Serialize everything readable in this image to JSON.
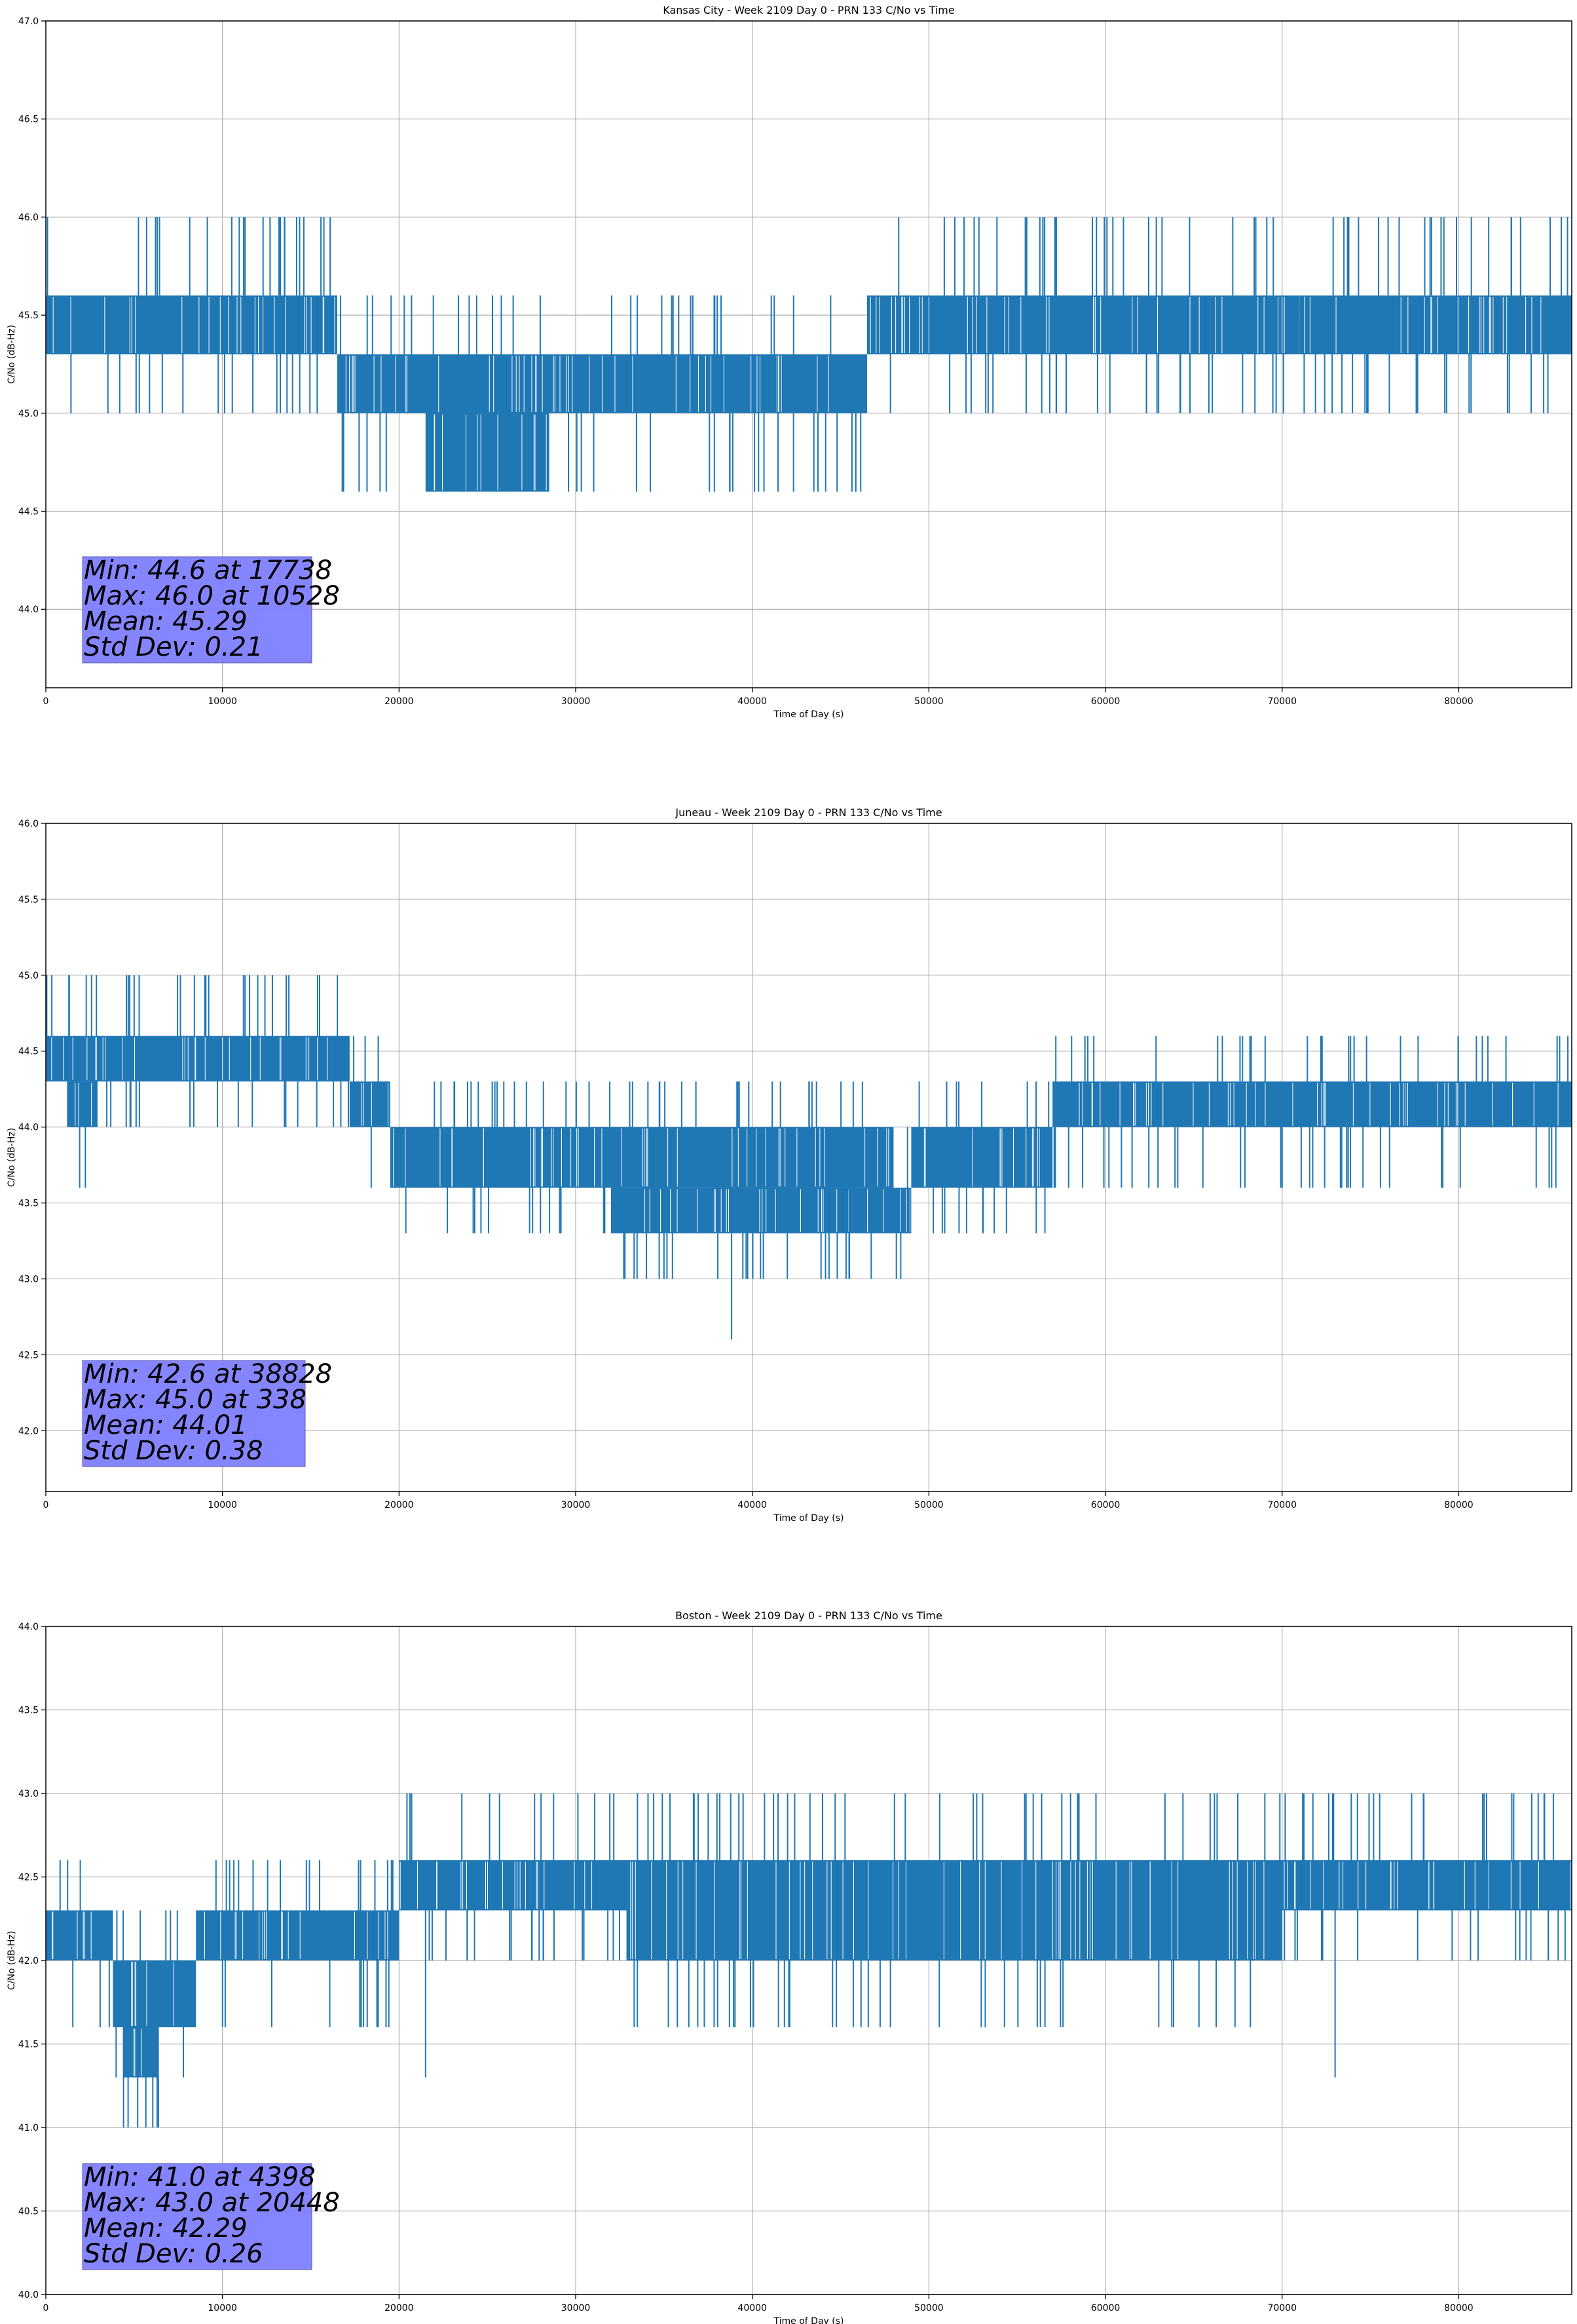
{
  "chart_data": [
    {
      "type": "line",
      "title": "Kansas City - Week 2109 Day 0 - PRN 133 C/No vs Time",
      "xlabel": "Time of Day (s)",
      "ylabel": "C/No (dB-Hz)",
      "xlim": [
        0,
        86400
      ],
      "ylim": [
        43.6,
        47.0
      ],
      "xticks": [
        0,
        10000,
        20000,
        30000,
        40000,
        50000,
        60000,
        70000,
        80000
      ],
      "yticks": [
        44.0,
        44.5,
        45.0,
        45.5,
        46.0,
        46.5,
        47.0
      ],
      "grid": true,
      "line_color": "#1f77b4",
      "quantization_levels": [
        44.6,
        45.0,
        45.3,
        45.6,
        46.0
      ],
      "dense_bands": [
        {
          "x": [
            0,
            16500
          ],
          "y": [
            45.3,
            45.6
          ]
        },
        {
          "x": [
            16500,
            27500
          ],
          "y": [
            45.0,
            45.3
          ]
        },
        {
          "x": [
            21500,
            28500
          ],
          "y": [
            44.6,
            45.0
          ]
        },
        {
          "x": [
            27500,
            46500
          ],
          "y": [
            45.0,
            45.3
          ]
        },
        {
          "x": [
            46500,
            71000
          ],
          "y": [
            45.3,
            45.6
          ]
        },
        {
          "x": [
            71000,
            86400
          ],
          "y": [
            45.3,
            45.6
          ]
        }
      ],
      "excursions": [
        {
          "x": 10528,
          "y": 46.0
        },
        {
          "x": 11200,
          "y": 46.0
        },
        {
          "x": 12300,
          "y": 46.0
        },
        {
          "x": 14200,
          "y": 46.0
        },
        {
          "x": 17738,
          "y": 44.6
        },
        {
          "x": 73500,
          "y": 46.0
        },
        {
          "x": 76000,
          "y": 46.0
        },
        {
          "x": 79000,
          "y": 46.0
        },
        {
          "x": 83500,
          "y": 46.0
        }
      ],
      "stats_box": {
        "lines": [
          "Min: 44.6 at 17738",
          "Max: 46.0 at 10528",
          "Mean: 45.29",
          "Std Dev: 0.21"
        ],
        "color": "#7f7fff"
      }
    },
    {
      "type": "line",
      "title": "Juneau - Week 2109 Day 0 - PRN 133 C/No vs Time",
      "xlabel": "Time of Day (s)",
      "ylabel": "C/No (dB-Hz)",
      "xlim": [
        0,
        86400
      ],
      "ylim": [
        41.6,
        46.0
      ],
      "xticks": [
        0,
        10000,
        20000,
        30000,
        40000,
        50000,
        60000,
        70000,
        80000
      ],
      "yticks": [
        42.0,
        42.5,
        43.0,
        43.5,
        44.0,
        44.5,
        45.0,
        45.5,
        46.0
      ],
      "grid": true,
      "line_color": "#1f77b4",
      "quantization_levels": [
        42.6,
        43.0,
        43.3,
        43.6,
        44.0,
        44.3,
        44.6,
        45.0
      ],
      "dense_bands": [
        {
          "x": [
            0,
            3000
          ],
          "y": [
            44.3,
            44.6
          ]
        },
        {
          "x": [
            1200,
            2800
          ],
          "y": [
            44.0,
            44.3
          ]
        },
        {
          "x": [
            2800,
            17200
          ],
          "y": [
            44.3,
            44.6
          ]
        },
        {
          "x": [
            17200,
            19500
          ],
          "y": [
            44.0,
            44.3
          ]
        },
        {
          "x": [
            19500,
            30000
          ],
          "y": [
            43.6,
            44.0
          ]
        },
        {
          "x": [
            30000,
            48000
          ],
          "y": [
            43.6,
            44.0
          ]
        },
        {
          "x": [
            32000,
            49000
          ],
          "y": [
            43.3,
            43.6
          ]
        },
        {
          "x": [
            49000,
            57000
          ],
          "y": [
            43.6,
            44.0
          ]
        },
        {
          "x": [
            57000,
            86400
          ],
          "y": [
            44.0,
            44.3
          ]
        }
      ],
      "excursions": [
        {
          "x": 338,
          "y": 45.0
        },
        {
          "x": 5000,
          "y": 45.0
        },
        {
          "x": 9000,
          "y": 45.0
        },
        {
          "x": 12000,
          "y": 45.0
        },
        {
          "x": 15500,
          "y": 45.0
        },
        {
          "x": 38828,
          "y": 42.6
        },
        {
          "x": 35000,
          "y": 43.0
        },
        {
          "x": 45500,
          "y": 43.0
        },
        {
          "x": 81000,
          "y": 44.6
        }
      ],
      "stats_box": {
        "lines": [
          "Min: 42.6 at 38828",
          "Max: 45.0 at 338",
          "Mean: 44.01",
          "Std Dev: 0.38"
        ],
        "color": "#7f7fff"
      }
    },
    {
      "type": "line",
      "title": "Boston - Week 2109 Day 0 - PRN 133 C/No vs Time",
      "xlabel": "Time of Day (s)",
      "ylabel": "C/No (dB-Hz)",
      "xlim": [
        0,
        86400
      ],
      "ylim": [
        40.0,
        44.0
      ],
      "xticks": [
        0,
        10000,
        20000,
        30000,
        40000,
        50000,
        60000,
        70000,
        80000
      ],
      "yticks": [
        40.0,
        40.5,
        41.0,
        41.5,
        42.0,
        42.5,
        43.0,
        43.5,
        44.0
      ],
      "grid": true,
      "line_color": "#1f77b4",
      "quantization_levels": [
        41.0,
        41.3,
        41.6,
        42.0,
        42.3,
        42.6,
        43.0
      ],
      "dense_bands": [
        {
          "x": [
            0,
            3800
          ],
          "y": [
            42.0,
            42.3
          ]
        },
        {
          "x": [
            3800,
            8500
          ],
          "y": [
            41.6,
            42.0
          ]
        },
        {
          "x": [
            4400,
            6400
          ],
          "y": [
            41.3,
            41.6
          ]
        },
        {
          "x": [
            8500,
            20000
          ],
          "y": [
            42.0,
            42.3
          ]
        },
        {
          "x": [
            20000,
            33000
          ],
          "y": [
            42.3,
            42.6
          ]
        },
        {
          "x": [
            33000,
            70000
          ],
          "y": [
            42.0,
            42.6
          ]
        },
        {
          "x": [
            70000,
            86400
          ],
          "y": [
            42.3,
            42.6
          ]
        }
      ],
      "excursions": [
        {
          "x": 4398,
          "y": 41.0
        },
        {
          "x": 5200,
          "y": 41.0
        },
        {
          "x": 20448,
          "y": 43.0
        },
        {
          "x": 33500,
          "y": 43.0
        },
        {
          "x": 38000,
          "y": 43.0
        },
        {
          "x": 42000,
          "y": 43.0
        },
        {
          "x": 55500,
          "y": 43.0
        },
        {
          "x": 21500,
          "y": 41.3
        },
        {
          "x": 73000,
          "y": 41.3
        },
        {
          "x": 78000,
          "y": 43.0
        },
        {
          "x": 84500,
          "y": 43.0
        }
      ],
      "stats_box": {
        "lines": [
          "Min: 41.0 at 4398",
          "Max: 43.0 at 20448",
          "Mean: 42.29",
          "Std Dev: 0.26"
        ],
        "color": "#7f7fff"
      }
    }
  ]
}
